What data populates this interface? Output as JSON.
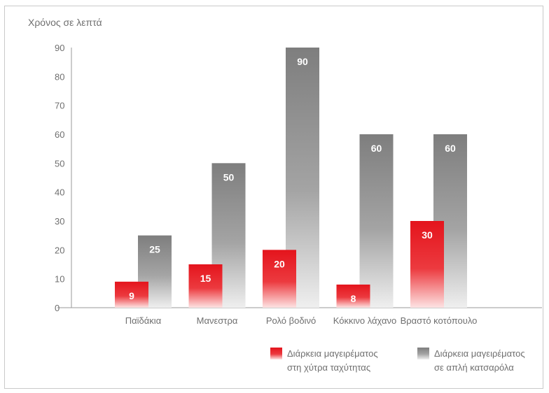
{
  "chart_data": {
    "type": "bar",
    "ylabel": "Χρόνος σε λεπτά",
    "ylim": [
      0,
      90
    ],
    "yticks": [
      0,
      10,
      20,
      30,
      40,
      50,
      60,
      70,
      80,
      90
    ],
    "categories": [
      "Παϊδάκια",
      "Μανεστρα",
      "Ρολό βοδινό",
      "Κόκκινο λάχανο",
      "Βραστό κοτόπουλο"
    ],
    "series": [
      {
        "name": "Διάρκεια μαγειρέματος στη χύτρα ταχύτητας",
        "color": "#e01e24",
        "values": [
          9,
          15,
          20,
          8,
          30
        ]
      },
      {
        "name": "Διάρκεια μαγειρέματος σε απλή κατσαρόλα",
        "color": "#8c8c8c",
        "values": [
          25,
          50,
          90,
          60,
          60
        ]
      }
    ],
    "grid": false,
    "legend": "bottom-right"
  }
}
